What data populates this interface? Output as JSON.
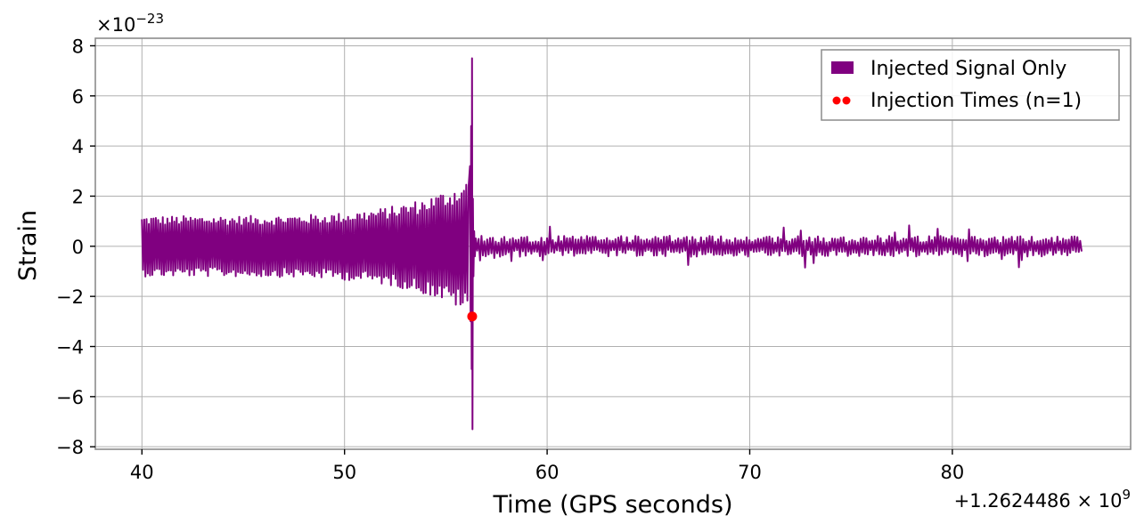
{
  "chart_data": {
    "type": "line",
    "title": "",
    "xlabel": "Time (GPS seconds)",
    "ylabel": "Strain",
    "x_offset_label": "+1.2624486 × 10",
    "x_offset_exponent": "9",
    "y_multiplier_label": "×10",
    "y_multiplier_exponent": "−23",
    "xlim": [
      37.7,
      88.8
    ],
    "ylim": [
      -8.1,
      8.3
    ],
    "xticks": [
      40,
      50,
      60,
      70,
      80
    ],
    "xtick_labels": [
      "40",
      "50",
      "60",
      "70",
      "80"
    ],
    "yticks": [
      -8,
      -6,
      -4,
      -2,
      0,
      2,
      4,
      6,
      8
    ],
    "ytick_labels": [
      "−8",
      "−6",
      "−4",
      "−2",
      "0",
      "2",
      "4",
      "6",
      "8"
    ],
    "grid": true,
    "legend_position": "top-right",
    "series": [
      {
        "name": "Injected Signal Only",
        "kind": "strain",
        "color": "#800080",
        "x_start": 40.0,
        "x_merger": 56.3,
        "x_end": 86.4,
        "amplitude_start": 1.1,
        "amplitude_pre_merger": 2.5,
        "amplitude_post": 0.35,
        "peak_max": 7.5,
        "peak_min": -7.3
      },
      {
        "name": "Injection Times (n=1)",
        "kind": "marker",
        "color": "#ff0000",
        "points": [
          {
            "x": 56.3,
            "y": -2.8
          }
        ]
      }
    ]
  }
}
